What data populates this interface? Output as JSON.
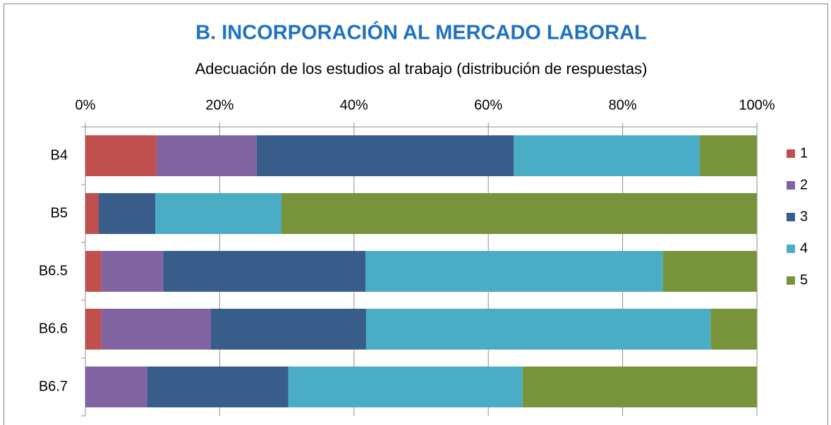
{
  "chart_data": {
    "type": "stacked_barh",
    "title": "B.  INCORPORACIÓN AL MERCADO LABORAL",
    "subtitle": "Adecuación de los estudios  al trabajo (distribución de respuestas)",
    "categories": [
      "B4",
      "B5",
      "B6.5",
      "B6.6",
      "B6.7"
    ],
    "series": [
      {
        "name": "1",
        "color": "#c0504d",
        "values": [
          10.6,
          2.0,
          2.4,
          2.4,
          0
        ]
      },
      {
        "name": "2",
        "color": "#8064a2",
        "values": [
          14.9,
          0,
          9.2,
          16.3,
          9.2
        ]
      },
      {
        "name": "3",
        "color": "#385d8a",
        "values": [
          38.3,
          8.4,
          30.1,
          23.1,
          21.0
        ]
      },
      {
        "name": "4",
        "color": "#4bacc6",
        "values": [
          27.7,
          18.8,
          44.3,
          51.3,
          34.9
        ]
      },
      {
        "name": "5",
        "color": "#77933c",
        "values": [
          8.5,
          70.8,
          14.0,
          6.9,
          34.9
        ]
      }
    ],
    "xlim": [
      0,
      100
    ],
    "xticks": [
      {
        "value": 0,
        "label": "0%"
      },
      {
        "value": 20,
        "label": "20%"
      },
      {
        "value": 40,
        "label": "40%"
      },
      {
        "value": 60,
        "label": "60%"
      },
      {
        "value": 80,
        "label": "80%"
      },
      {
        "value": 100,
        "label": "100%"
      }
    ],
    "grid": true,
    "legend": "right"
  }
}
